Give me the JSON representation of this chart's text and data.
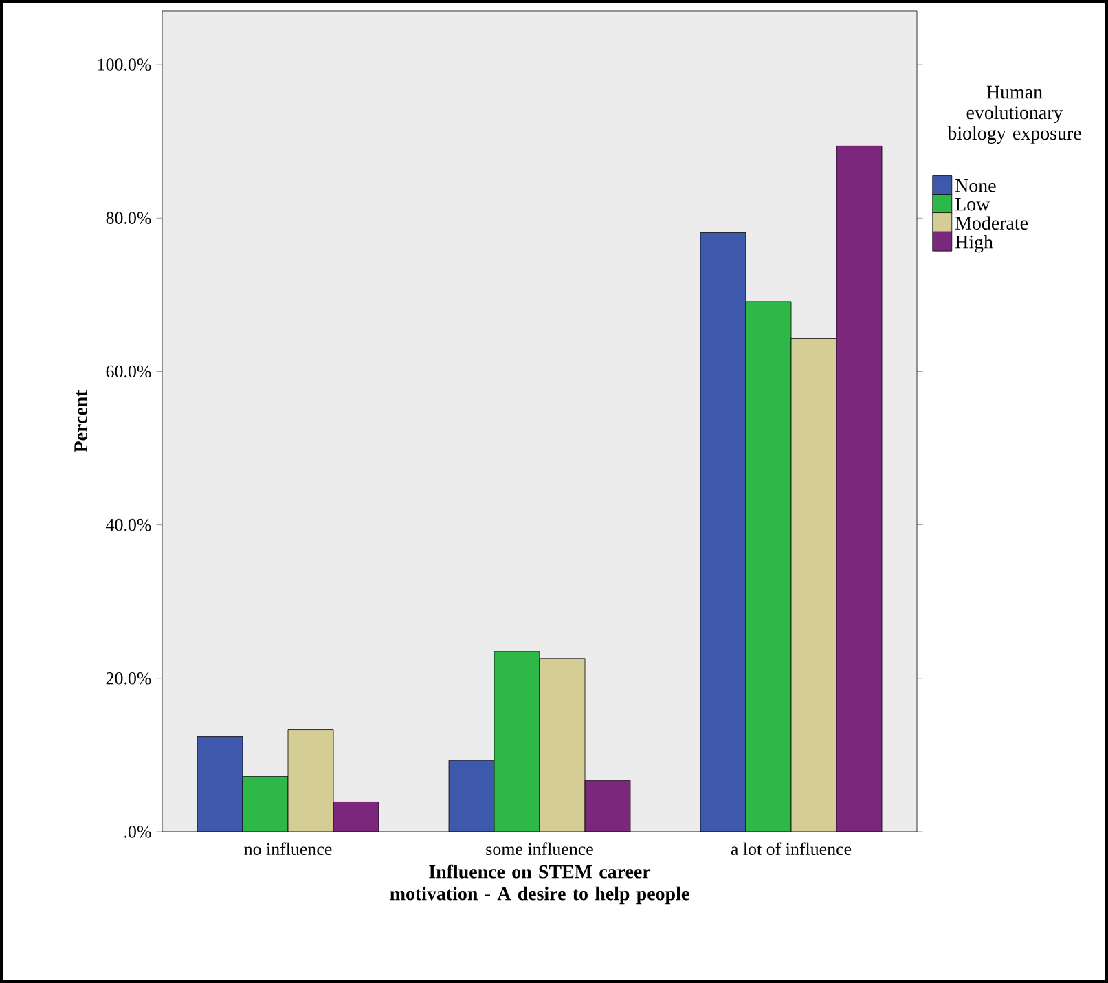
{
  "chart_data": {
    "type": "bar",
    "xlabel": "Influence on STEM career motivation - A desire to help people",
    "ylabel": "Percent",
    "legend_title": "Human evolutionary biology exposure",
    "categories": [
      "no influence",
      "some influence",
      "a lot of influence"
    ],
    "series": [
      {
        "name": "None",
        "color": "#3e58ac",
        "values": [
          12.4,
          9.3,
          78.1
        ]
      },
      {
        "name": "Low",
        "color": "#2eb848",
        "values": [
          7.2,
          23.5,
          69.1
        ]
      },
      {
        "name": "Moderate",
        "color": "#d4ce96",
        "values": [
          13.3,
          22.6,
          64.3
        ]
      },
      {
        "name": "High",
        "color": "#7b287c",
        "values": [
          3.9,
          6.7,
          89.4
        ]
      }
    ],
    "ylim": [
      0,
      107
    ],
    "yticks": [
      {
        "value": 0,
        "label": ".0%"
      },
      {
        "value": 20,
        "label": "20.0%"
      },
      {
        "value": 40,
        "label": "40.0%"
      },
      {
        "value": 60,
        "label": "60.0%"
      },
      {
        "value": 80,
        "label": "80.0%"
      },
      {
        "value": 100,
        "label": "100.0%"
      }
    ],
    "grid": false,
    "legend": "right"
  }
}
